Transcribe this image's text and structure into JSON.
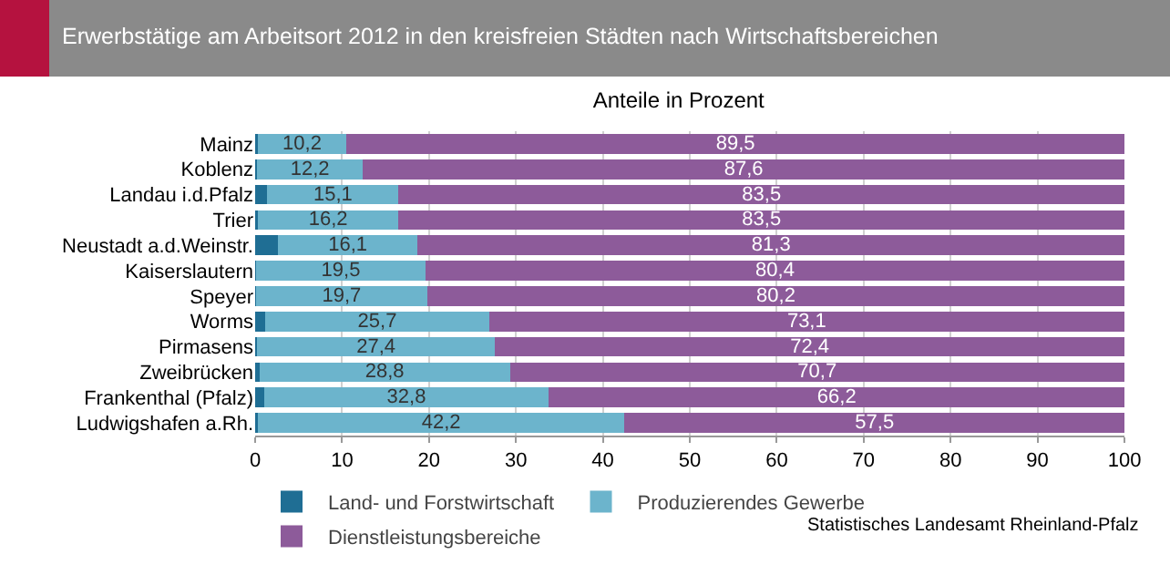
{
  "chart_data": {
    "type": "bar",
    "orientation": "horizontal",
    "stacked": true,
    "title": "Erwerbstätige am Arbeitsort 2012 in den kreisfreien Städten nach Wirtschaftsbereichen",
    "subtitle": "Anteile in Prozent",
    "categories": [
      "Mainz",
      "Koblenz",
      "Landau i.d.Pfalz",
      "Trier",
      "Neustadt a.d.Weinstr.",
      "Kaiserslautern",
      "Speyer",
      "Worms",
      "Pirmasens",
      "Zweibrücken",
      "Frankenthal (Pfalz)",
      "Ludwigshafen a.Rh."
    ],
    "series": [
      {
        "name": "Land- und Forstwirtschaft",
        "color": "#1f6e94",
        "values": [
          0.3,
          0.2,
          1.4,
          0.3,
          2.6,
          0.1,
          0.1,
          1.2,
          0.2,
          0.5,
          1.0,
          0.3
        ]
      },
      {
        "name": "Produzierendes Gewerbe",
        "color": "#6cb4cc",
        "values": [
          10.2,
          12.2,
          15.1,
          16.2,
          16.1,
          19.5,
          19.7,
          25.7,
          27.4,
          28.8,
          32.8,
          42.2
        ],
        "value_labels": [
          "10,2",
          "12,2",
          "15,1",
          "16,2",
          "16,1",
          "19,5",
          "19,7",
          "25,7",
          "27,4",
          "28,8",
          "32,8",
          "42,2"
        ]
      },
      {
        "name": "Dienstleistungsbereiche",
        "color": "#8d5b9a",
        "values": [
          89.5,
          87.6,
          83.5,
          83.5,
          81.3,
          80.4,
          80.2,
          73.1,
          72.4,
          70.7,
          66.2,
          57.5
        ],
        "value_labels": [
          "89,5",
          "87,6",
          "83,5",
          "83,5",
          "81,3",
          "80,4",
          "80,2",
          "73,1",
          "72,4",
          "70,7",
          "66,2",
          "57,5"
        ]
      }
    ],
    "xlim": [
      0,
      100
    ],
    "xticks": [
      0,
      10,
      20,
      30,
      40,
      50,
      60,
      70,
      80,
      90,
      100
    ],
    "grid": "x",
    "legend": "bottom",
    "annotations": [
      "Statistisches Landesamt Rheinland-Pfalz"
    ]
  }
}
